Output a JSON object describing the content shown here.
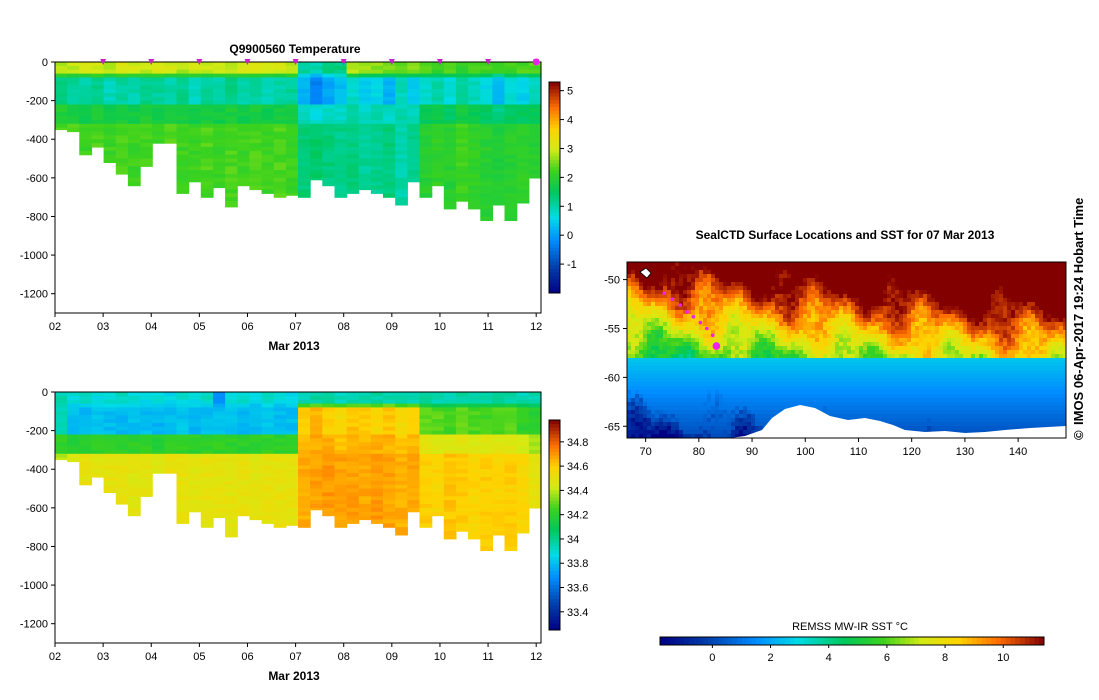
{
  "chart_data": [
    {
      "type": "heatmap",
      "title": "Q9900560  Temperature",
      "xlabel": "Mar 2013",
      "ylabel": "",
      "x_ticks": [
        "02",
        "03",
        "04",
        "05",
        "06",
        "07",
        "08",
        "09",
        "10",
        "11",
        "12"
      ],
      "x_range_days": [
        2,
        12.1
      ],
      "y_ticks": [
        0,
        -200,
        -400,
        -600,
        -800,
        -1000,
        -1200
      ],
      "ylim": [
        -1300,
        0
      ],
      "colorbar": {
        "ticks": [
          5,
          4,
          3,
          2,
          1,
          0,
          -1
        ],
        "range": [
          -2.0,
          5.3
        ]
      },
      "profile_markers_days": [
        3,
        4,
        5,
        6,
        7,
        8,
        9,
        10,
        11,
        12
      ],
      "surface_values": [
        2.8,
        2.9,
        3.0,
        3.0,
        2.8,
        3.1,
        3.0,
        2.9,
        3.1,
        3.0,
        2.8,
        3.0,
        2.9,
        3.0,
        2.8,
        3.0,
        3.1,
        2.9,
        3.0,
        2.8,
        1.1,
        1.0,
        1.2,
        1.3,
        2.8,
        2.7,
        2.6,
        2.5,
        2.4,
        2.6,
        2.3,
        2.2,
        2.4,
        2.1,
        2.3,
        2.2,
        2.1,
        2.2,
        2.3,
        2.4
      ],
      "mid_values": [
        1.3,
        1.1,
        1.0,
        1.2,
        0.9,
        1.1,
        1.0,
        1.2,
        1.1,
        1.0,
        1.2,
        0.9,
        1.1,
        1.0,
        1.2,
        1.0,
        1.1,
        0.9,
        1.0,
        1.1,
        0.2,
        -0.3,
        0.1,
        0.3,
        0.8,
        0.4,
        0.6,
        0.2,
        0.9,
        0.5,
        0.8,
        1.0,
        0.7,
        1.1,
        0.9,
        0.6,
        0.3,
        0.8,
        0.5,
        0.9
      ],
      "deep_values": [
        2.3,
        2.3,
        2.2,
        2.3,
        2.2,
        2.3,
        2.2,
        2.3,
        2.2,
        2.3,
        2.2,
        2.2,
        2.3,
        2.2,
        2.3,
        2.2,
        2.3,
        2.2,
        2.3,
        2.2,
        1.3,
        1.4,
        1.3,
        1.2,
        1.3,
        1.1,
        1.2,
        1.3,
        1.0,
        1.2,
        2.0,
        2.1,
        2.0,
        2.2,
        2.1,
        2.0,
        1.9,
        2.0,
        2.1,
        2.0
      ],
      "max_depth_m": [
        350,
        360,
        480,
        440,
        520,
        580,
        640,
        540,
        420,
        420,
        680,
        620,
        700,
        650,
        750,
        640,
        660,
        680,
        700,
        690,
        700,
        610,
        640,
        700,
        680,
        660,
        680,
        700,
        740,
        620,
        700,
        640,
        760,
        720,
        760,
        820,
        740,
        820,
        730,
        600
      ]
    },
    {
      "type": "heatmap",
      "title": "",
      "xlabel": "Mar 2013",
      "ylabel": "",
      "x_ticks": [
        "02",
        "03",
        "04",
        "05",
        "06",
        "07",
        "08",
        "09",
        "10",
        "11",
        "12"
      ],
      "x_range_days": [
        2,
        12.1
      ],
      "y_ticks": [
        0,
        -200,
        -400,
        -600,
        -800,
        -1000,
        -1200
      ],
      "ylim": [
        -1300,
        0
      ],
      "colorbar": {
        "ticks": [
          34.8,
          34.6,
          34.4,
          34.2,
          34,
          33.8,
          33.6,
          33.4
        ],
        "range": [
          33.25,
          34.98
        ]
      },
      "surface_values": [
        33.95,
        33.9,
        33.92,
        33.88,
        33.9,
        33.93,
        33.9,
        33.87,
        33.9,
        33.86,
        33.9,
        33.88,
        33.92,
        33.7,
        33.88,
        33.9,
        33.86,
        33.9,
        33.88,
        33.85,
        33.95,
        33.98,
        33.96,
        33.94,
        33.95,
        33.96,
        33.97,
        33.95,
        33.96,
        33.95,
        33.97,
        33.96,
        33.95,
        33.98,
        33.96,
        33.95,
        33.97,
        33.96,
        33.95,
        33.97
      ],
      "mid_values": [
        33.95,
        33.8,
        33.78,
        33.82,
        33.8,
        33.79,
        33.81,
        33.8,
        33.78,
        33.8,
        33.82,
        33.79,
        33.8,
        33.81,
        33.8,
        33.78,
        33.8,
        33.82,
        33.79,
        33.8,
        34.6,
        34.65,
        34.6,
        34.55,
        34.62,
        34.6,
        34.58,
        34.62,
        34.55,
        34.6,
        34.3,
        34.28,
        34.25,
        34.3,
        34.27,
        34.25,
        34.28,
        34.3,
        34.22,
        34.2
      ],
      "deep_values": [
        34.4,
        34.45,
        34.5,
        34.48,
        34.5,
        34.5,
        34.48,
        34.5,
        34.47,
        34.5,
        34.5,
        34.48,
        34.5,
        34.5,
        34.49,
        34.5,
        34.48,
        34.5,
        34.5,
        34.5,
        34.66,
        34.68,
        34.7,
        34.68,
        34.69,
        34.67,
        34.7,
        34.68,
        34.66,
        34.68,
        34.6,
        34.58,
        34.62,
        34.6,
        34.58,
        34.6,
        34.59,
        34.6,
        34.58,
        34.5
      ],
      "max_depth_m": [
        350,
        360,
        480,
        440,
        520,
        580,
        640,
        540,
        420,
        420,
        680,
        620,
        700,
        650,
        750,
        640,
        660,
        680,
        700,
        690,
        700,
        610,
        640,
        700,
        680,
        660,
        680,
        700,
        740,
        620,
        700,
        640,
        760,
        720,
        760,
        820,
        740,
        820,
        730,
        600
      ]
    },
    {
      "type": "heatmap",
      "title": "SealCTD Surface Locations and SST for 07 Mar 2013",
      "xlabel": "",
      "ylabel": "",
      "x_ticks": [
        "70",
        "80",
        "90",
        "100",
        "110",
        "120",
        "130",
        "140"
      ],
      "y_ticks": [
        "-50",
        "-55",
        "-60",
        "-65"
      ],
      "lon_range": [
        66.5,
        149
      ],
      "lat_range": [
        -66.2,
        -48.2
      ],
      "colorbar": {
        "label": "REMSS MW-IR SST °C",
        "ticks": [
          "0",
          "2",
          "4",
          "6",
          "8",
          "10"
        ],
        "range": [
          -1.8,
          11.4
        ]
      },
      "track_points": [
        {
          "lon": 73.5,
          "lat": -51.4
        },
        {
          "lon": 75.0,
          "lat": -52.0
        },
        {
          "lon": 76.5,
          "lat": -52.6
        },
        {
          "lon": 77.8,
          "lat": -53.3
        },
        {
          "lon": 79.0,
          "lat": -53.8
        },
        {
          "lon": 80.3,
          "lat": -54.4
        },
        {
          "lon": 81.5,
          "lat": -55.0
        },
        {
          "lon": 82.6,
          "lat": -55.7
        },
        {
          "lon": 83.3,
          "lat": -56.8
        }
      ]
    }
  ],
  "timestamp": "IMOS 06-Apr-2017 19:24 Hobart Time",
  "copyright": "©",
  "colors": {
    "track": "#ee22ee",
    "landmask": "#ffffff"
  }
}
